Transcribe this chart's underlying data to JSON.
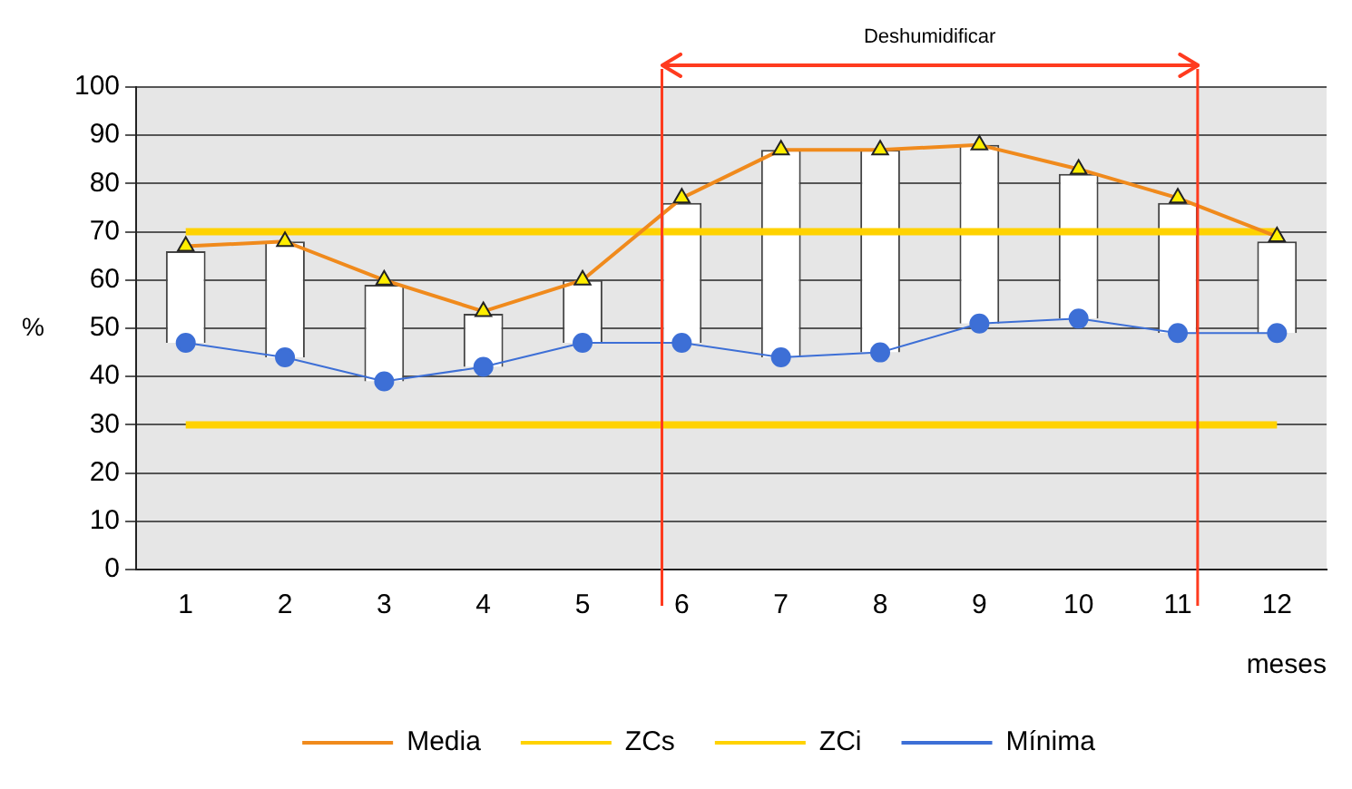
{
  "chart_data": {
    "type": "line",
    "x": [
      1,
      2,
      3,
      4,
      5,
      6,
      7,
      8,
      9,
      10,
      11,
      12
    ],
    "xlim": [
      0.5,
      12.5
    ],
    "xticks": [
      1,
      2,
      3,
      4,
      5,
      6,
      7,
      8,
      9,
      10,
      11,
      12
    ],
    "ylim": [
      0,
      100
    ],
    "yticks": [
      0,
      10,
      20,
      30,
      40,
      50,
      60,
      70,
      80,
      90,
      100
    ],
    "xlabel": "meses",
    "ylabel": "%",
    "grid": "y",
    "legend": "bottom",
    "series": [
      {
        "type": "bar",
        "color": "#ffffff",
        "base": [
          47,
          44,
          39,
          42,
          47,
          47,
          44,
          45,
          51,
          52,
          49,
          49
        ],
        "values": [
          19,
          24,
          20,
          11,
          13,
          29,
          43,
          42,
          37,
          30,
          27,
          19
        ]
      },
      {
        "name": "Media",
        "color": "#f08a1c",
        "marker": "triangle",
        "values": [
          67,
          68,
          60,
          53.5,
          60,
          77,
          87,
          87,
          88,
          83,
          77,
          69
        ]
      },
      {
        "name": "ZCs",
        "color": "#ffd200",
        "marker": "none",
        "values": [
          70,
          70,
          70,
          70,
          70,
          70,
          70,
          70,
          70,
          70,
          70,
          70
        ]
      },
      {
        "name": "ZCi",
        "color": "#ffd200",
        "marker": "none",
        "values": [
          30,
          30,
          30,
          30,
          30,
          30,
          30,
          30,
          30,
          30,
          30,
          30
        ]
      },
      {
        "name": "Mínima",
        "color": "#3d6fd6",
        "marker": "circle",
        "values": [
          47,
          44,
          39,
          42,
          47,
          47,
          44,
          45,
          51,
          52,
          49,
          49
        ]
      }
    ],
    "ref_lines": [
      {
        "axis": "x",
        "value": 5.8,
        "color": "#ff3b1f"
      },
      {
        "axis": "x",
        "value": 11.2,
        "color": "#ff3b1f"
      }
    ],
    "annotations": [
      "Deshumidificar"
    ]
  }
}
